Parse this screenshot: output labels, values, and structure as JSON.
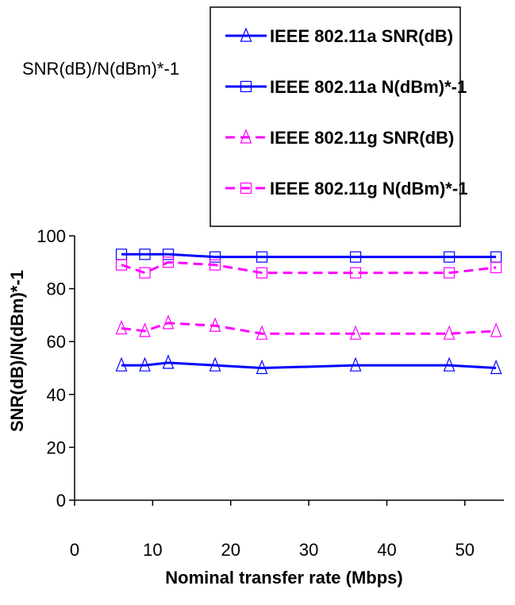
{
  "chart_data": {
    "type": "line",
    "title": "SNR(dB)/N(dBm)*-1",
    "xlabel": "Nominal transfer rate (Mbps)",
    "ylabel": "SNR(dB)/N(dBm)*-1",
    "xlim": [
      0,
      55
    ],
    "ylim": [
      0,
      100
    ],
    "xticks": [
      0,
      10,
      20,
      30,
      40,
      50
    ],
    "yticks": [
      0,
      20,
      40,
      60,
      80,
      100
    ],
    "grid": false,
    "legend_position": "top-right",
    "series": [
      {
        "name": "IEEE 802.11a SNR(dB)",
        "color": "#0000ff",
        "line_style": "solid",
        "marker": "triangle",
        "x": [
          6,
          9,
          12,
          18,
          24,
          36,
          48,
          54
        ],
        "y": [
          51,
          51,
          52,
          51,
          50,
          51,
          51,
          50
        ]
      },
      {
        "name": "IEEE 802.11a N(dBm)*-1",
        "color": "#0000ff",
        "line_style": "solid",
        "marker": "square",
        "x": [
          6,
          9,
          12,
          18,
          24,
          36,
          48,
          54
        ],
        "y": [
          93,
          93,
          93,
          92,
          92,
          92,
          92,
          92
        ]
      },
      {
        "name": "IEEE 802.11g SNR(dB)",
        "color": "#ff00ff",
        "line_style": "dashed",
        "marker": "triangle",
        "x": [
          6,
          9,
          12,
          18,
          24,
          36,
          48,
          54
        ],
        "y": [
          65,
          64,
          67,
          66,
          63,
          63,
          63,
          64
        ]
      },
      {
        "name": "IEEE 802.11g N(dBm)*-1",
        "color": "#ff00ff",
        "line_style": "dashed",
        "marker": "square",
        "x": [
          6,
          9,
          12,
          18,
          24,
          36,
          48,
          54
        ],
        "y": [
          89,
          86,
          90,
          89,
          86,
          86,
          86,
          88
        ]
      }
    ]
  }
}
